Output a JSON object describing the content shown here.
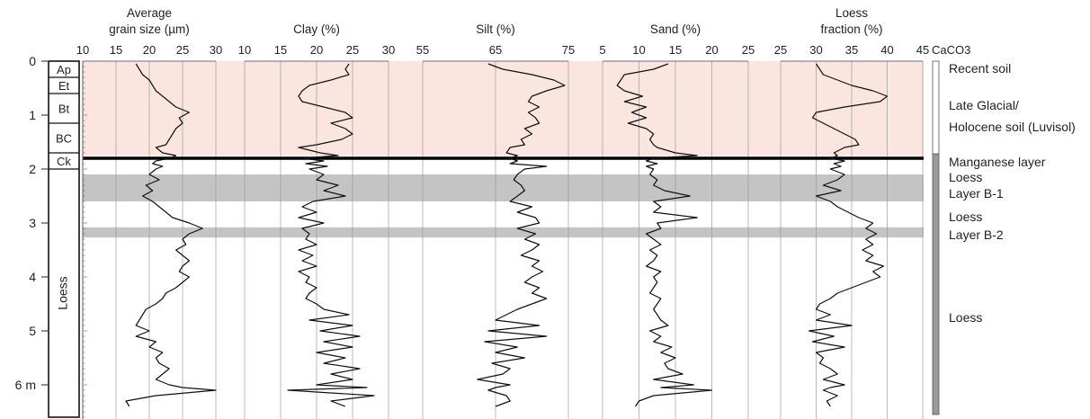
{
  "chart_data": {
    "type": "line",
    "depth_axis": {
      "range": [
        0,
        6.6
      ],
      "ticks": [
        {
          "v": 0,
          "label": "0"
        },
        {
          "v": 1,
          "label": "1"
        },
        {
          "v": 2,
          "label": "2"
        },
        {
          "v": 3,
          "label": "3"
        },
        {
          "v": 4,
          "label": "4"
        },
        {
          "v": 5,
          "label": "5"
        },
        {
          "v": 6,
          "label": "6 m"
        }
      ]
    },
    "horizons": [
      {
        "name": "Ap",
        "top": 0.0,
        "bottom": 0.3
      },
      {
        "name": "Et",
        "top": 0.3,
        "bottom": 0.6
      },
      {
        "name": "Bt",
        "top": 0.6,
        "bottom": 1.15
      },
      {
        "name": "BC",
        "top": 1.15,
        "bottom": 1.7
      },
      {
        "name": "Ck",
        "top": 1.7,
        "bottom": 2.0
      },
      {
        "name": "Loess",
        "top": 2.0,
        "bottom": 6.6
      }
    ],
    "shaded_zones": [
      {
        "kind": "soil",
        "top": 0.0,
        "bottom": 1.75,
        "color": "#fae6de"
      },
      {
        "kind": "layer",
        "top": 2.1,
        "bottom": 2.6,
        "color": "#c4c4c4"
      },
      {
        "kind": "layer",
        "top": 3.08,
        "bottom": 3.27,
        "color": "#c4c4c4"
      }
    ],
    "manganese_depth": 1.8,
    "zone_labels": [
      {
        "text": "Recent soil",
        "depth": 0.13
      },
      {
        "text": "Late Glacial/",
        "depth": 0.82
      },
      {
        "text": "Holocene soil (Luvisol)",
        "depth": 1.22
      },
      {
        "text": "Manganese layer",
        "depth": 1.87
      },
      {
        "text": "Loess",
        "depth": 2.15
      },
      {
        "text": "Layer B-1",
        "depth": 2.45
      },
      {
        "text": "Loess",
        "depth": 2.88
      },
      {
        "text": "Layer B-2",
        "depth": 3.22
      },
      {
        "text": "Loess",
        "depth": 4.75
      }
    ],
    "caco3": {
      "label": "CaCO3",
      "segments": [
        {
          "top": 0.0,
          "bottom": 1.72,
          "fill": "#ffffff"
        },
        {
          "top": 1.72,
          "bottom": 6.55,
          "fill": "#9a9a9a"
        }
      ]
    },
    "series": [
      {
        "title": [
          "Average",
          "grain size (µm)"
        ],
        "axis_ticks": [
          10,
          15,
          20,
          25,
          30
        ],
        "axis_range": [
          10,
          30
        ],
        "depth": [
          0.05,
          0.15,
          0.25,
          0.35,
          0.45,
          0.55,
          0.65,
          0.75,
          0.85,
          0.95,
          1.05,
          1.15,
          1.25,
          1.35,
          1.45,
          1.55,
          1.6,
          1.7,
          1.75,
          1.8,
          1.85,
          1.9,
          1.95,
          2.0,
          2.1,
          2.2,
          2.3,
          2.4,
          2.5,
          2.6,
          2.7,
          2.8,
          2.9,
          3.0,
          3.1,
          3.2,
          3.3,
          3.4,
          3.5,
          3.6,
          3.7,
          3.8,
          3.9,
          4.0,
          4.1,
          4.2,
          4.3,
          4.4,
          4.5,
          4.6,
          4.7,
          4.8,
          4.9,
          5.0,
          5.1,
          5.2,
          5.3,
          5.4,
          5.5,
          5.6,
          5.7,
          5.8,
          5.9,
          6.0,
          6.05,
          6.1,
          6.2,
          6.3,
          6.4
        ],
        "values": [
          18,
          18.5,
          19,
          20,
          20.5,
          21,
          22,
          23,
          24,
          26,
          24.5,
          25,
          24,
          23.5,
          23,
          22.5,
          21,
          22,
          24,
          23,
          21,
          20.5,
          22,
          21,
          20,
          21.5,
          19.5,
          20.5,
          19,
          20.5,
          21.5,
          22.5,
          23.5,
          26,
          28,
          26,
          25,
          25.5,
          24,
          25,
          26,
          25,
          24.5,
          26,
          25,
          24,
          22.5,
          22,
          21,
          19.5,
          19,
          18.5,
          18,
          20,
          18,
          21,
          20,
          22,
          21,
          21.5,
          23,
          22,
          21,
          23,
          25,
          30,
          21,
          16.5,
          17
        ]
      },
      {
        "title": [
          "",
          "Clay (%)"
        ],
        "axis_ticks": [
          10,
          15,
          20,
          25,
          30
        ],
        "axis_range": [
          10,
          30
        ],
        "depth": [
          0.05,
          0.15,
          0.25,
          0.35,
          0.45,
          0.55,
          0.65,
          0.75,
          0.85,
          0.95,
          1.05,
          1.15,
          1.25,
          1.35,
          1.45,
          1.55,
          1.6,
          1.7,
          1.75,
          1.8,
          1.85,
          1.9,
          1.95,
          2.0,
          2.1,
          2.2,
          2.3,
          2.4,
          2.5,
          2.6,
          2.7,
          2.8,
          2.9,
          3.0,
          3.1,
          3.2,
          3.3,
          3.4,
          3.5,
          3.6,
          3.7,
          3.8,
          3.9,
          4.0,
          4.1,
          4.2,
          4.3,
          4.4,
          4.5,
          4.6,
          4.7,
          4.8,
          4.9,
          5.0,
          5.1,
          5.2,
          5.3,
          5.4,
          5.5,
          5.6,
          5.7,
          5.8,
          5.9,
          6.0,
          6.05,
          6.1,
          6.2,
          6.3,
          6.4
        ],
        "values": [
          24.5,
          24,
          24.5,
          22,
          19,
          18,
          17.5,
          18,
          21,
          24,
          25,
          22,
          24,
          25,
          23.5,
          20,
          17.5,
          20.5,
          23,
          18,
          21,
          18.5,
          21.5,
          19,
          21,
          20,
          23,
          21,
          24,
          19.5,
          18,
          20,
          17.5,
          21,
          18,
          19,
          18.5,
          20,
          17.5,
          19.5,
          18,
          20,
          17.5,
          19,
          18.5,
          20,
          19,
          18.5,
          20,
          21,
          24.5,
          19,
          25,
          20.5,
          26,
          21,
          25,
          20,
          24,
          21,
          26,
          22,
          25,
          20,
          27,
          16,
          28,
          22,
          24
        ]
      },
      {
        "title": [
          "",
          "Silt (%)"
        ],
        "axis_ticks": [
          55,
          65,
          75
        ],
        "axis_range": [
          55,
          75
        ],
        "depth": [
          0.05,
          0.15,
          0.25,
          0.35,
          0.45,
          0.55,
          0.65,
          0.75,
          0.85,
          0.95,
          1.05,
          1.15,
          1.25,
          1.35,
          1.45,
          1.55,
          1.6,
          1.7,
          1.75,
          1.8,
          1.85,
          1.9,
          1.95,
          2.0,
          2.1,
          2.2,
          2.3,
          2.4,
          2.5,
          2.6,
          2.7,
          2.8,
          2.9,
          3.0,
          3.1,
          3.2,
          3.3,
          3.4,
          3.5,
          3.6,
          3.7,
          3.8,
          3.9,
          4.0,
          4.1,
          4.2,
          4.3,
          4.4,
          4.5,
          4.6,
          4.7,
          4.8,
          4.9,
          5.0,
          5.1,
          5.2,
          5.3,
          5.4,
          5.5,
          5.6,
          5.7,
          5.8,
          5.9,
          6.0,
          6.05,
          6.1,
          6.2,
          6.3,
          6.4
        ],
        "values": [
          64,
          66,
          70,
          73,
          74.5,
          72,
          70,
          69.5,
          71,
          69.5,
          70.5,
          71,
          69,
          70,
          68.5,
          69,
          67,
          66.5,
          68,
          67,
          68,
          67,
          72,
          69,
          68,
          67.5,
          68.5,
          69,
          68,
          67,
          70,
          68,
          70.5,
          71,
          68,
          70.5,
          69,
          71,
          70,
          68.5,
          71,
          70,
          71.5,
          70,
          69,
          71,
          70,
          72,
          70,
          68,
          66.5,
          65,
          71,
          64,
          72,
          63.5,
          68,
          65,
          69,
          64.5,
          67,
          66,
          62.5,
          67,
          65,
          64,
          66.5,
          67,
          65
        ]
      },
      {
        "title": [
          "",
          "Sand (%)"
        ],
        "axis_ticks": [
          5,
          10,
          15,
          20,
          25
        ],
        "axis_range": [
          5,
          25
        ],
        "depth": [
          0.05,
          0.15,
          0.25,
          0.35,
          0.45,
          0.55,
          0.65,
          0.75,
          0.85,
          0.95,
          1.05,
          1.15,
          1.25,
          1.35,
          1.45,
          1.55,
          1.6,
          1.7,
          1.75,
          1.8,
          1.85,
          1.9,
          1.95,
          2.0,
          2.1,
          2.2,
          2.3,
          2.4,
          2.5,
          2.6,
          2.7,
          2.8,
          2.9,
          3.0,
          3.1,
          3.2,
          3.3,
          3.4,
          3.5,
          3.6,
          3.7,
          3.8,
          3.9,
          4.0,
          4.1,
          4.2,
          4.3,
          4.4,
          4.5,
          4.6,
          4.7,
          4.8,
          4.9,
          5.0,
          5.1,
          5.2,
          5.3,
          5.4,
          5.5,
          5.6,
          5.7,
          5.8,
          5.9,
          6.0,
          6.05,
          6.1,
          6.2,
          6.3,
          6.4
        ],
        "values": [
          14,
          12,
          8,
          7.5,
          7,
          8,
          10.5,
          8,
          11,
          9,
          11,
          8.5,
          11,
          12,
          11.5,
          12,
          12.5,
          15,
          18,
          12,
          11,
          12.5,
          11,
          12,
          11.5,
          12.5,
          12,
          13.5,
          17,
          12,
          13,
          12,
          18,
          12.5,
          13,
          11,
          12,
          13,
          11.5,
          12.5,
          12,
          11,
          13,
          12,
          12.5,
          12,
          11.5,
          13,
          12.5,
          12,
          12.5,
          13,
          14,
          11.5,
          13,
          12,
          14.5,
          13,
          15,
          13.5,
          14,
          16,
          12,
          17.5,
          13,
          20,
          12,
          10,
          9.5
        ]
      },
      {
        "title": [
          "Loess",
          "fraction (%)"
        ],
        "axis_ticks": [
          25,
          30,
          35,
          40,
          45
        ],
        "axis_range": [
          25,
          45
        ],
        "depth": [
          0.05,
          0.15,
          0.25,
          0.35,
          0.45,
          0.55,
          0.65,
          0.75,
          0.85,
          0.95,
          1.05,
          1.15,
          1.25,
          1.35,
          1.45,
          1.55,
          1.6,
          1.7,
          1.75,
          1.8,
          1.85,
          1.9,
          1.95,
          2.0,
          2.1,
          2.2,
          2.3,
          2.4,
          2.5,
          2.6,
          2.7,
          2.8,
          2.9,
          3.0,
          3.1,
          3.2,
          3.3,
          3.4,
          3.5,
          3.6,
          3.7,
          3.8,
          3.9,
          4.0,
          4.1,
          4.2,
          4.3,
          4.4,
          4.5,
          4.6,
          4.7,
          4.8,
          4.9,
          5.0,
          5.1,
          5.2,
          5.3,
          5.4,
          5.5,
          5.6,
          5.7,
          5.8,
          5.9,
          6.0,
          6.05,
          6.1,
          6.2,
          6.3,
          6.4
        ],
        "values": [
          30,
          30.5,
          31,
          33,
          35,
          38,
          40,
          39,
          34,
          30,
          29.5,
          31,
          32.5,
          34,
          35.5,
          36,
          34,
          32.5,
          33,
          32,
          34,
          32.5,
          33.5,
          32,
          34,
          33,
          31,
          33.5,
          30,
          32,
          33,
          34.5,
          36,
          38,
          37,
          38.5,
          37,
          38,
          36.5,
          38,
          37,
          39.5,
          38,
          39,
          37,
          35,
          33,
          32,
          30.5,
          30,
          32,
          30,
          35,
          29,
          32.5,
          29.5,
          34,
          30,
          31,
          30.5,
          32,
          33,
          31,
          34,
          32,
          31,
          33,
          31.5,
          32
        ]
      }
    ]
  }
}
